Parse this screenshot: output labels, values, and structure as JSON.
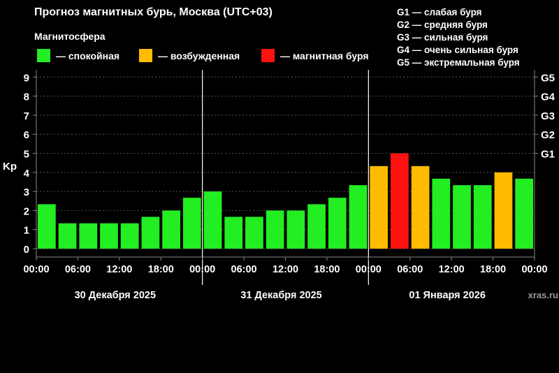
{
  "header": {
    "title": "Прогноз магнитных бурь, Москва (UTC+03)",
    "subtitle": "Магнитосфера"
  },
  "legend": [
    {
      "label": "— спокойная",
      "color": "#22ee22"
    },
    {
      "label": "— возбужденная",
      "color": "#ffbb00"
    },
    {
      "label": "— магнитная буря",
      "color": "#ff1111"
    }
  ],
  "storm_levels": [
    "G1 — слабая буря",
    "G2 — средняя буря",
    "G3 — сильная буря",
    "G4 — очень сильная буря",
    "G5 — экстремальная буря"
  ],
  "watermark": "xras.ru",
  "colors": {
    "calm": "#22ee22",
    "active": "#ffbb00",
    "storm": "#ff1111",
    "background": "#000000",
    "grid": "#555555"
  },
  "chart_data": {
    "type": "bar",
    "ylabel": "Kp",
    "ylim": [
      0,
      9
    ],
    "y_ticks": [
      "0",
      "1",
      "2",
      "3",
      "4",
      "5",
      "6",
      "7",
      "8",
      "9"
    ],
    "right_ticks": [
      {
        "value": 5,
        "label": "G1"
      },
      {
        "value": 6,
        "label": "G2"
      },
      {
        "value": 7,
        "label": "G3"
      },
      {
        "value": 8,
        "label": "G4"
      },
      {
        "value": 9,
        "label": "G5"
      }
    ],
    "x_tick_labels": [
      "00:00",
      "06:00",
      "12:00",
      "18:00",
      "00:00",
      "06:00",
      "12:00",
      "18:00",
      "00:00",
      "06:00",
      "12:00",
      "18:00",
      "00:00"
    ],
    "days": [
      "30 Декабря 2025",
      "31 Декабря 2025",
      "01 Января 2026"
    ],
    "values": [
      2.33,
      1.33,
      1.33,
      1.33,
      1.33,
      1.67,
      2.0,
      2.67,
      3.0,
      1.67,
      1.67,
      2.0,
      2.0,
      2.33,
      2.67,
      3.33,
      4.33,
      5.0,
      4.33,
      3.67,
      3.33,
      3.33,
      4.0,
      3.67
    ],
    "levels": [
      "calm",
      "calm",
      "calm",
      "calm",
      "calm",
      "calm",
      "calm",
      "calm",
      "calm",
      "calm",
      "calm",
      "calm",
      "calm",
      "calm",
      "calm",
      "calm",
      "active",
      "storm",
      "active",
      "calm",
      "calm",
      "calm",
      "active",
      "calm"
    ]
  }
}
